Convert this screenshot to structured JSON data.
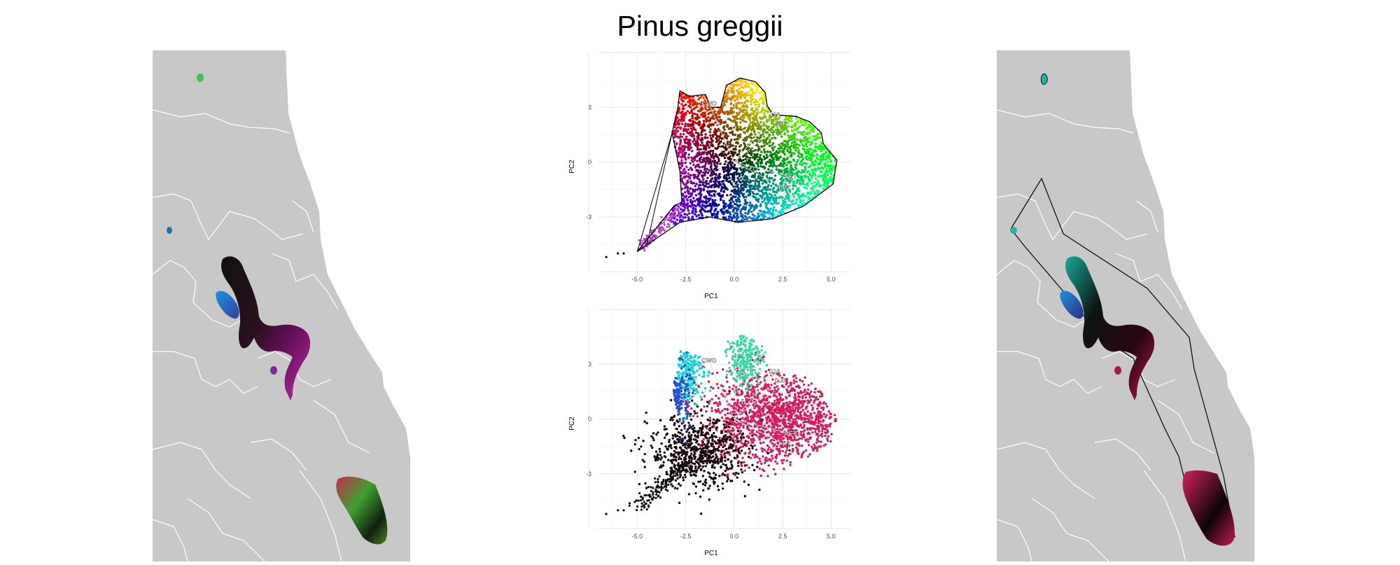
{
  "title": "Pinus greggii",
  "colors": {
    "land": "#c8c8c8",
    "borders": "#ffffff",
    "grid": "#ececec"
  },
  "chart_data": [
    {
      "type": "scatter",
      "panel": "top",
      "xlabel": "PC1",
      "ylabel": "PC2",
      "xlim": [
        -7,
        6
      ],
      "ylim": [
        -6,
        6
      ],
      "xticks": [
        -5.0,
        -2.5,
        0.0,
        2.5,
        5.0
      ],
      "xtick_labels": [
        "-5.0",
        "-2.5",
        "0.0",
        "2.5",
        "5.0"
      ],
      "yticks": [
        -3,
        0,
        3
      ],
      "ytick_labels": [
        "-3",
        "0",
        "3"
      ],
      "grid": true,
      "coloring": "continuous hue wheel by PCA position (black at center)",
      "hull": [
        [
          -5.0,
          -4.9
        ],
        [
          -3.1,
          -2.4
        ],
        [
          -2.7,
          -2.2
        ],
        [
          -2.8,
          -0.5
        ],
        [
          -3.2,
          1.6
        ],
        [
          -2.9,
          3.0
        ],
        [
          -2.8,
          3.9
        ],
        [
          -2.3,
          3.6
        ],
        [
          -1.5,
          3.7
        ],
        [
          -1.2,
          3.0
        ],
        [
          -0.7,
          3.0
        ],
        [
          -0.4,
          4.2
        ],
        [
          0.3,
          4.6
        ],
        [
          1.1,
          4.4
        ],
        [
          1.6,
          3.8
        ],
        [
          1.7,
          3.1
        ],
        [
          2.0,
          2.6
        ],
        [
          3.2,
          2.5
        ],
        [
          3.9,
          2.2
        ],
        [
          4.5,
          1.6
        ],
        [
          4.6,
          1.0
        ],
        [
          5.3,
          0.1
        ],
        [
          5.1,
          -1.2
        ],
        [
          3.6,
          -2.4
        ],
        [
          2.0,
          -3.1
        ],
        [
          0.2,
          -3.3
        ],
        [
          -1.3,
          -3.0
        ],
        [
          -2.8,
          -3.3
        ],
        [
          -5.0,
          -4.9
        ]
      ],
      "hull_extra": [
        [
          -5.0,
          -4.9
        ],
        [
          -3.2,
          1.6
        ],
        [
          -4.5,
          -4.5
        ]
      ],
      "outliers": [
        [
          -6.6,
          -5.2
        ],
        [
          -6.0,
          -5.0
        ],
        [
          -5.7,
          -5.0
        ]
      ],
      "vectors": [
        {
          "label": "CWD",
          "x": -1.3,
          "y": 3.2
        },
        {
          "label": "JJA",
          "x": 2.1,
          "y": 2.6
        },
        {
          "label": "DJF",
          "x": 2.4,
          "y": 2.1
        },
        {
          "label": "AET",
          "x": 2.9,
          "y": -0.8
        },
        {
          "label": "PPT",
          "x": 2.6,
          "y": -1.4
        }
      ]
    },
    {
      "type": "scatter",
      "panel": "bottom",
      "xlabel": "PC1",
      "ylabel": "PC2",
      "xlim": [
        -7,
        6
      ],
      "ylim": [
        -6,
        6
      ],
      "xticks": [
        -5.0,
        -2.5,
        0.0,
        2.5,
        5.0
      ],
      "xtick_labels": [
        "-5.0",
        "-2.5",
        "0.0",
        "2.5",
        "5.0"
      ],
      "yticks": [
        -3,
        0,
        3
      ],
      "ytick_labels": [
        "-3",
        "0",
        "3"
      ],
      "grid": true,
      "coloring": "points colored by population cluster",
      "clusters": [
        {
          "color": "#d41d5c",
          "cx": 2.2,
          "cy": 0.0,
          "sx": 1.9,
          "sy": 1.3
        },
        {
          "color": "#1a0a10",
          "cx": -1.8,
          "cy": -1.8,
          "sx": 1.3,
          "sy": 1.0
        },
        {
          "color": "#3ad7a6",
          "cx": 0.6,
          "cy": 3.4,
          "sx": 0.5,
          "sy": 0.8
        },
        {
          "color": "#16d2d7",
          "cx": -2.6,
          "cy": 2.6,
          "sx": 0.5,
          "sy": 0.9
        },
        {
          "color": "#2a4ed0",
          "cx": -2.9,
          "cy": 1.2,
          "sx": 0.3,
          "sy": 0.9
        }
      ],
      "outliers": [
        [
          -6.6,
          -5.2
        ],
        [
          -6.0,
          -5.0
        ],
        [
          -5.7,
          -5.0
        ]
      ],
      "vectors": [
        {
          "label": "CWD",
          "x": -1.3,
          "y": 3.2
        },
        {
          "label": "JJA",
          "x": 2.1,
          "y": 2.6
        },
        {
          "label": "DJF",
          "x": 2.4,
          "y": 2.1
        },
        {
          "label": "AET",
          "x": 2.9,
          "y": -0.8
        },
        {
          "label": "PPT",
          "x": 2.6,
          "y": -1.4
        }
      ]
    }
  ]
}
